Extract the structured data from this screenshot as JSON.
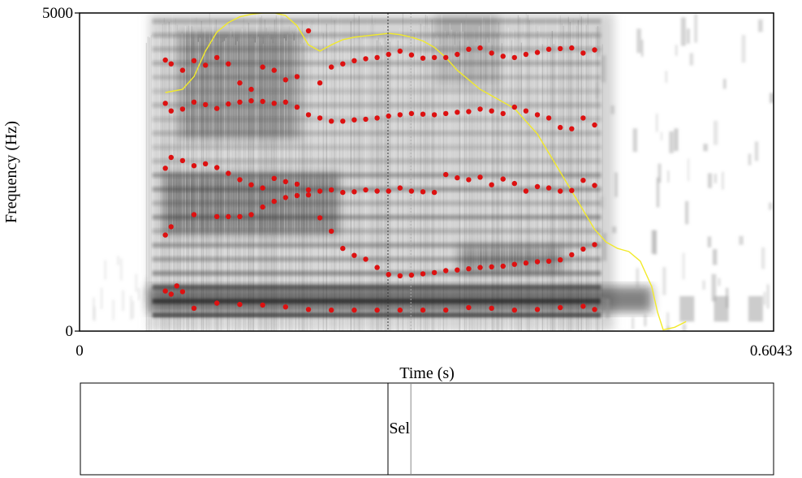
{
  "chart_data": {
    "type": "scatter",
    "title": "",
    "xlabel": "Time (s)",
    "ylabel": "Frequency (Hz)",
    "xlim": [
      0,
      0.6043
    ],
    "ylim": [
      0,
      5000
    ],
    "x_tick_labels": [
      "0",
      "0.6043"
    ],
    "y_tick_labels": [
      "0",
      "5000"
    ],
    "grid": false,
    "legend": "none",
    "cursor_times": [
      0.2695,
      0.2895
    ],
    "colors": {
      "formant_points": "#dd1111",
      "intensity_curve": "#f2ea2a",
      "spectrogram_dark": "#1a1a1a",
      "cursor_line": "#333333",
      "cursor_line_light": "#aaaaaa"
    },
    "spectrogram": {
      "voiced_start_s": 0.058,
      "voiced_end_s": 0.45,
      "darkest_band_hz": [
        300,
        700
      ]
    },
    "series": [
      {
        "role": "formant_1",
        "x": [
          0.075,
          0.08,
          0.085,
          0.09,
          0.1,
          0.12,
          0.14,
          0.16,
          0.18,
          0.2,
          0.22,
          0.24,
          0.26,
          0.28,
          0.3,
          0.32,
          0.34,
          0.36,
          0.38,
          0.4,
          0.42,
          0.44,
          0.45
        ],
        "y": [
          630,
          580,
          710,
          620,
          360,
          440,
          420,
          410,
          380,
          340,
          330,
          330,
          330,
          330,
          330,
          330,
          370,
          360,
          330,
          340,
          370,
          390,
          340
        ]
      },
      {
        "role": "formant_2",
        "x": [
          0.075,
          0.08,
          0.1,
          0.12,
          0.13,
          0.14,
          0.15,
          0.16,
          0.17,
          0.18,
          0.19,
          0.2,
          0.21,
          0.22,
          0.23,
          0.24,
          0.25,
          0.26,
          0.27,
          0.28,
          0.29,
          0.3,
          0.31,
          0.32,
          0.33,
          0.34,
          0.35,
          0.36,
          0.37,
          0.38,
          0.39,
          0.4,
          0.41,
          0.42,
          0.43,
          0.44,
          0.45
        ],
        "y": [
          1510,
          1640,
          1830,
          1800,
          1800,
          1800,
          1830,
          1950,
          2040,
          2100,
          2130,
          2140,
          1780,
          1570,
          1300,
          1190,
          1130,
          1000,
          890,
          870,
          880,
          900,
          920,
          950,
          960,
          980,
          1000,
          1010,
          1020,
          1050,
          1070,
          1090,
          1100,
          1120,
          1200,
          1290,
          1360
        ]
      },
      {
        "role": "formant_3",
        "x": [
          0.075,
          0.08,
          0.09,
          0.1,
          0.11,
          0.12,
          0.13,
          0.14,
          0.15,
          0.16,
          0.17,
          0.18,
          0.19,
          0.2,
          0.21,
          0.22,
          0.23,
          0.24,
          0.25,
          0.26,
          0.27,
          0.28,
          0.29,
          0.3,
          0.31,
          0.32,
          0.33,
          0.34,
          0.35,
          0.36,
          0.37,
          0.38,
          0.39,
          0.4,
          0.41,
          0.42,
          0.43,
          0.44,
          0.45
        ],
        "y": [
          2560,
          2730,
          2680,
          2600,
          2630,
          2570,
          2480,
          2380,
          2300,
          2250,
          2400,
          2350,
          2310,
          2220,
          2200,
          2220,
          2180,
          2190,
          2220,
          2200,
          2200,
          2250,
          2200,
          2190,
          2180,
          2460,
          2410,
          2380,
          2420,
          2300,
          2390,
          2320,
          2200,
          2270,
          2250,
          2200,
          2210,
          2370,
          2290
        ]
      },
      {
        "role": "formant_4",
        "x": [
          0.075,
          0.08,
          0.09,
          0.1,
          0.11,
          0.12,
          0.13,
          0.14,
          0.15,
          0.16,
          0.17,
          0.18,
          0.19,
          0.2,
          0.21,
          0.22,
          0.23,
          0.24,
          0.25,
          0.26,
          0.27,
          0.28,
          0.29,
          0.3,
          0.31,
          0.32,
          0.33,
          0.34,
          0.35,
          0.36,
          0.37,
          0.38,
          0.39,
          0.4,
          0.41,
          0.42,
          0.43,
          0.44,
          0.45
        ],
        "y": [
          3580,
          3460,
          3490,
          3600,
          3560,
          3500,
          3570,
          3600,
          3620,
          3610,
          3580,
          3600,
          3520,
          3400,
          3350,
          3300,
          3300,
          3320,
          3330,
          3350,
          3380,
          3400,
          3420,
          3410,
          3400,
          3420,
          3440,
          3450,
          3490,
          3460,
          3420,
          3520,
          3460,
          3400,
          3350,
          3200,
          3180,
          3350,
          3240
        ]
      },
      {
        "role": "formant_5",
        "x": [
          0.075,
          0.08,
          0.09,
          0.1,
          0.11,
          0.12,
          0.13,
          0.14,
          0.15,
          0.16,
          0.17,
          0.18,
          0.19,
          0.2,
          0.21,
          0.22,
          0.23,
          0.24,
          0.25,
          0.26,
          0.27,
          0.28,
          0.29,
          0.3,
          0.31,
          0.32,
          0.33,
          0.34,
          0.35,
          0.36,
          0.37,
          0.38,
          0.39,
          0.4,
          0.41,
          0.42,
          0.43,
          0.44,
          0.45
        ],
        "y": [
          4260,
          4200,
          4100,
          4250,
          4180,
          4300,
          4200,
          3900,
          3800,
          4150,
          4100,
          3950,
          4000,
          4720,
          3900,
          4150,
          4200,
          4250,
          4280,
          4300,
          4350,
          4400,
          4340,
          4290,
          4300,
          4300,
          4350,
          4430,
          4450,
          4370,
          4320,
          4300,
          4350,
          4380,
          4430,
          4440,
          4450,
          4370,
          4420
        ]
      },
      {
        "role": "intensity_curve",
        "x": [
          0.075,
          0.09,
          0.1,
          0.11,
          0.12,
          0.13,
          0.14,
          0.15,
          0.16,
          0.17,
          0.18,
          0.19,
          0.2,
          0.21,
          0.22,
          0.23,
          0.24,
          0.25,
          0.26,
          0.27,
          0.28,
          0.29,
          0.3,
          0.31,
          0.32,
          0.33,
          0.34,
          0.35,
          0.36,
          0.37,
          0.38,
          0.39,
          0.4,
          0.41,
          0.42,
          0.43,
          0.44,
          0.45,
          0.46,
          0.47,
          0.48,
          0.49,
          0.5,
          0.505,
          0.51,
          0.52,
          0.53
        ],
        "y": [
          3750,
          3800,
          4000,
          4400,
          4700,
          4850,
          4940,
          4980,
          5000,
          5000,
          4960,
          4800,
          4500,
          4400,
          4500,
          4580,
          4620,
          4640,
          4660,
          4680,
          4660,
          4620,
          4560,
          4460,
          4300,
          4100,
          3950,
          3800,
          3700,
          3600,
          3500,
          3300,
          3100,
          2800,
          2500,
          2200,
          1900,
          1600,
          1400,
          1300,
          1250,
          1100,
          700,
          300,
          20,
          60,
          150
        ]
      }
    ]
  },
  "annotation_tier": {
    "intervals": [
      {
        "start_s": 0.2695,
        "end_s": 0.2895,
        "label": "Sel"
      }
    ]
  }
}
